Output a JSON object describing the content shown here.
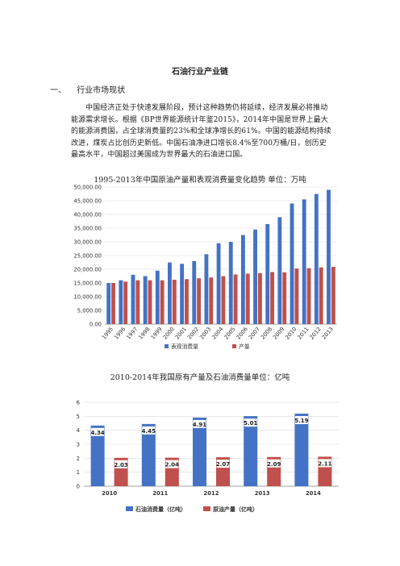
{
  "document": {
    "title": "石油行业产业链",
    "section": {
      "number": "一、",
      "heading": "行业市场现状"
    },
    "paragraph": "中国经济正处于快速发展阶段，预计这种趋势仍将延续，经济发展必将推动能源需求增长。根据《BP世界能源统计年鉴2015》，2014年中国是世界上最大的能源消费国，占全球消费量的23%和全球净增长的61%。中国的能源结构持续改进，煤炭占比创历史新低。中国石油净进口增长8.4%至700万桶/日，创历史最高水平，中国超过美国成为世界最大的石油进口国。"
  },
  "chart1": {
    "caption": "1995-2013年中国原油产量和表观消费量变化趋势 单位：万吨",
    "chart_data": {
      "type": "bar",
      "title": "",
      "categories": [
        "1995",
        "1996",
        "1997",
        "1998",
        "1999",
        "2000",
        "2001",
        "2002",
        "2003",
        "2004",
        "2005",
        "2006",
        "2007",
        "2008",
        "2009",
        "2010",
        "2011",
        "2012",
        "2013"
      ],
      "series": [
        {
          "name": "表观消费量",
          "color": "#4472c4",
          "values": [
            15000,
            16000,
            18000,
            17500,
            19500,
            22500,
            22000,
            23000,
            25500,
            29500,
            30000,
            32500,
            34500,
            36500,
            39000,
            44000,
            45500,
            47500,
            49000
          ]
        },
        {
          "name": "产量",
          "color": "#c0504d",
          "values": [
            15000,
            15500,
            16000,
            16000,
            16000,
            16200,
            16400,
            16700,
            17000,
            17500,
            18100,
            18400,
            18600,
            19000,
            18900,
            20300,
            20400,
            20700,
            20900
          ]
        }
      ],
      "yticks": [
        "0.00",
        "5,000.00",
        "10,000.00",
        "15,000.00",
        "20,000.00",
        "25,000.00",
        "30,000.00",
        "35,000.00",
        "40,000.00",
        "45,000.00",
        "50,000.00"
      ],
      "ylim": [
        0,
        50000
      ],
      "grid": true,
      "legend": "bottom"
    }
  },
  "chart2": {
    "caption": "2010-2014年我国原有产量及石油消费量单位：亿吨",
    "chart_data": {
      "type": "bar",
      "title": "",
      "categories": [
        "2010",
        "2011",
        "2012",
        "2013",
        "2014"
      ],
      "series": [
        {
          "name": "石油消费量（亿吨）",
          "color": "#4472c4",
          "values": [
            4.34,
            4.45,
            4.91,
            5.01,
            5.19
          ],
          "labels": [
            "4.34",
            "4.45",
            "4.91",
            "5.01",
            "5.19"
          ]
        },
        {
          "name": "原油产量（亿吨）",
          "color": "#c0504d",
          "values": [
            2.03,
            2.04,
            2.07,
            2.09,
            2.11
          ],
          "labels": [
            "2.03",
            "2.04",
            "2.07",
            "2.09",
            "2.11"
          ]
        }
      ],
      "yticks": [
        "0",
        "1",
        "2",
        "3",
        "4",
        "5",
        "6"
      ],
      "ylim": [
        0,
        6
      ],
      "grid": true,
      "legend": "bottom"
    }
  }
}
